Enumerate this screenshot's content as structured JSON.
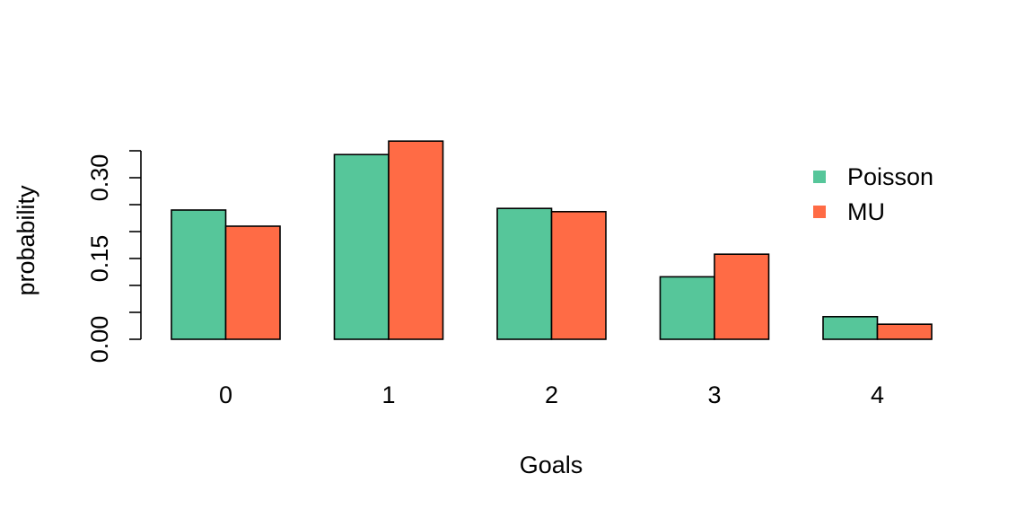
{
  "chart_data": {
    "type": "bar",
    "xlabel": "Goals",
    "ylabel": "probability",
    "categories": [
      "0",
      "1",
      "2",
      "3",
      "4"
    ],
    "series": [
      {
        "name": "Poisson",
        "color": "#56C69A",
        "values": [
          0.24,
          0.343,
          0.243,
          0.116,
          0.042
        ]
      },
      {
        "name": "MU",
        "color": "#FF6B45",
        "values": [
          0.21,
          0.368,
          0.237,
          0.158,
          0.028
        ]
      }
    ],
    "ylim": [
      0,
      0.35
    ],
    "yticks": [
      0,
      0.05,
      0.1,
      0.15,
      0.2,
      0.25,
      0.3,
      0.35
    ],
    "ytick_labels": [
      "0.00",
      "",
      "",
      "0.15",
      "",
      "",
      "0.30",
      ""
    ],
    "grid": false,
    "legend": {
      "position": "top-right"
    }
  }
}
